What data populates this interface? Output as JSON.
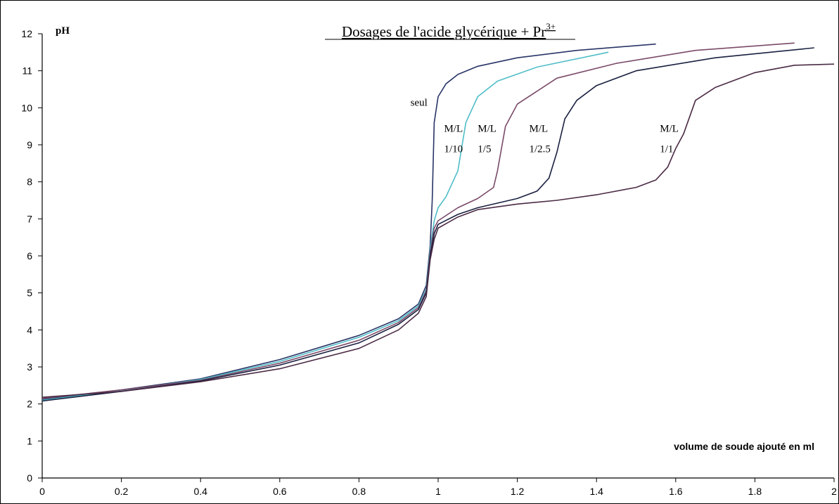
{
  "chart_data": {
    "type": "line",
    "title_main": "Dosages de l'acide glycérique + Pr",
    "title_sup": "3+",
    "ylabel": "pH",
    "xlabel": "volume de soude ajouté en ml",
    "xlim": [
      0,
      2
    ],
    "ylim": [
      0,
      12
    ],
    "x_ticks": [
      0,
      0.2,
      0.4,
      0.6,
      0.8,
      1,
      1.2,
      1.4,
      1.6,
      1.8,
      2
    ],
    "x_tick_labels": [
      "0",
      "0.2",
      "0.4",
      "0.6",
      "0.8",
      "1",
      "1.2",
      "1.4",
      "1.6",
      "1.8",
      "2"
    ],
    "y_ticks": [
      0,
      1,
      2,
      3,
      4,
      5,
      6,
      7,
      8,
      9,
      10,
      11,
      12
    ],
    "y_tick_labels": [
      "0",
      "1",
      "2",
      "3",
      "4",
      "5",
      "6",
      "7",
      "8",
      "9",
      "10",
      "11",
      "12"
    ],
    "grid": false,
    "series": [
      {
        "name": "seul",
        "color": "#283466",
        "points": [
          [
            0,
            2.12
          ],
          [
            0.2,
            2.38
          ],
          [
            0.4,
            2.68
          ],
          [
            0.6,
            3.2
          ],
          [
            0.8,
            3.85
          ],
          [
            0.9,
            4.3
          ],
          [
            0.95,
            4.7
          ],
          [
            0.97,
            5.2
          ],
          [
            0.98,
            6.3
          ],
          [
            0.985,
            7.5
          ],
          [
            0.99,
            9.6
          ],
          [
            1.0,
            10.3
          ],
          [
            1.02,
            10.65
          ],
          [
            1.05,
            10.9
          ],
          [
            1.1,
            11.12
          ],
          [
            1.2,
            11.35
          ],
          [
            1.35,
            11.55
          ],
          [
            1.55,
            11.72
          ]
        ]
      },
      {
        "name": "M/L 1/10",
        "color": "#4fbdc8",
        "points": [
          [
            0,
            2.1
          ],
          [
            0.2,
            2.36
          ],
          [
            0.4,
            2.66
          ],
          [
            0.6,
            3.15
          ],
          [
            0.8,
            3.8
          ],
          [
            0.9,
            4.25
          ],
          [
            0.95,
            4.65
          ],
          [
            0.97,
            5.1
          ],
          [
            0.98,
            6.2
          ],
          [
            0.99,
            6.95
          ],
          [
            1.0,
            7.3
          ],
          [
            1.02,
            7.6
          ],
          [
            1.05,
            8.3
          ],
          [
            1.07,
            9.6
          ],
          [
            1.1,
            10.3
          ],
          [
            1.15,
            10.72
          ],
          [
            1.25,
            11.1
          ],
          [
            1.43,
            11.5
          ]
        ]
      },
      {
        "name": "M/L 1/5",
        "color": "#7a4a68",
        "points": [
          [
            0,
            2.15
          ],
          [
            0.2,
            2.38
          ],
          [
            0.4,
            2.64
          ],
          [
            0.6,
            3.1
          ],
          [
            0.8,
            3.72
          ],
          [
            0.9,
            4.2
          ],
          [
            0.95,
            4.6
          ],
          [
            0.97,
            5.05
          ],
          [
            0.98,
            6.1
          ],
          [
            0.99,
            6.75
          ],
          [
            1.0,
            6.95
          ],
          [
            1.05,
            7.3
          ],
          [
            1.1,
            7.55
          ],
          [
            1.14,
            7.85
          ],
          [
            1.15,
            8.3
          ],
          [
            1.17,
            9.5
          ],
          [
            1.2,
            10.1
          ],
          [
            1.3,
            10.8
          ],
          [
            1.45,
            11.2
          ],
          [
            1.65,
            11.55
          ],
          [
            1.9,
            11.75
          ]
        ]
      },
      {
        "name": "M/L 1/2.5",
        "color": "#1a2040",
        "points": [
          [
            0,
            2.08
          ],
          [
            0.2,
            2.34
          ],
          [
            0.4,
            2.62
          ],
          [
            0.6,
            3.05
          ],
          [
            0.8,
            3.65
          ],
          [
            0.9,
            4.15
          ],
          [
            0.95,
            4.55
          ],
          [
            0.97,
            5.0
          ],
          [
            0.98,
            6.0
          ],
          [
            0.99,
            6.6
          ],
          [
            1.0,
            6.85
          ],
          [
            1.05,
            7.12
          ],
          [
            1.1,
            7.3
          ],
          [
            1.2,
            7.55
          ],
          [
            1.25,
            7.75
          ],
          [
            1.28,
            8.1
          ],
          [
            1.3,
            8.8
          ],
          [
            1.32,
            9.7
          ],
          [
            1.35,
            10.2
          ],
          [
            1.4,
            10.6
          ],
          [
            1.5,
            11.0
          ],
          [
            1.7,
            11.35
          ],
          [
            1.95,
            11.62
          ]
        ]
      },
      {
        "name": "M/L 1/1",
        "color": "#4a2a44",
        "points": [
          [
            0,
            2.18
          ],
          [
            0.2,
            2.34
          ],
          [
            0.4,
            2.6
          ],
          [
            0.6,
            2.95
          ],
          [
            0.8,
            3.5
          ],
          [
            0.9,
            4.0
          ],
          [
            0.95,
            4.45
          ],
          [
            0.97,
            4.9
          ],
          [
            0.98,
            5.9
          ],
          [
            0.99,
            6.45
          ],
          [
            1.0,
            6.75
          ],
          [
            1.05,
            7.05
          ],
          [
            1.1,
            7.25
          ],
          [
            1.2,
            7.4
          ],
          [
            1.3,
            7.5
          ],
          [
            1.4,
            7.65
          ],
          [
            1.5,
            7.85
          ],
          [
            1.55,
            8.05
          ],
          [
            1.58,
            8.4
          ],
          [
            1.6,
            8.9
          ],
          [
            1.62,
            9.3
          ],
          [
            1.65,
            10.2
          ],
          [
            1.7,
            10.55
          ],
          [
            1.8,
            10.95
          ],
          [
            1.9,
            11.15
          ],
          [
            2.0,
            11.18
          ]
        ]
      }
    ],
    "curve_labels": [
      {
        "lines": [
          "seul"
        ],
        "x": 0.93,
        "y": 10.05
      },
      {
        "lines": [
          "M/L",
          "1/10"
        ],
        "x": 1.015,
        "y": 9.35
      },
      {
        "lines": [
          "M/L",
          "1/5"
        ],
        "x": 1.1,
        "y": 9.35
      },
      {
        "lines": [
          "M/L",
          "1/2.5"
        ],
        "x": 1.23,
        "y": 9.35
      },
      {
        "lines": [
          "M/L",
          "1/1"
        ],
        "x": 1.56,
        "y": 9.35
      }
    ]
  }
}
